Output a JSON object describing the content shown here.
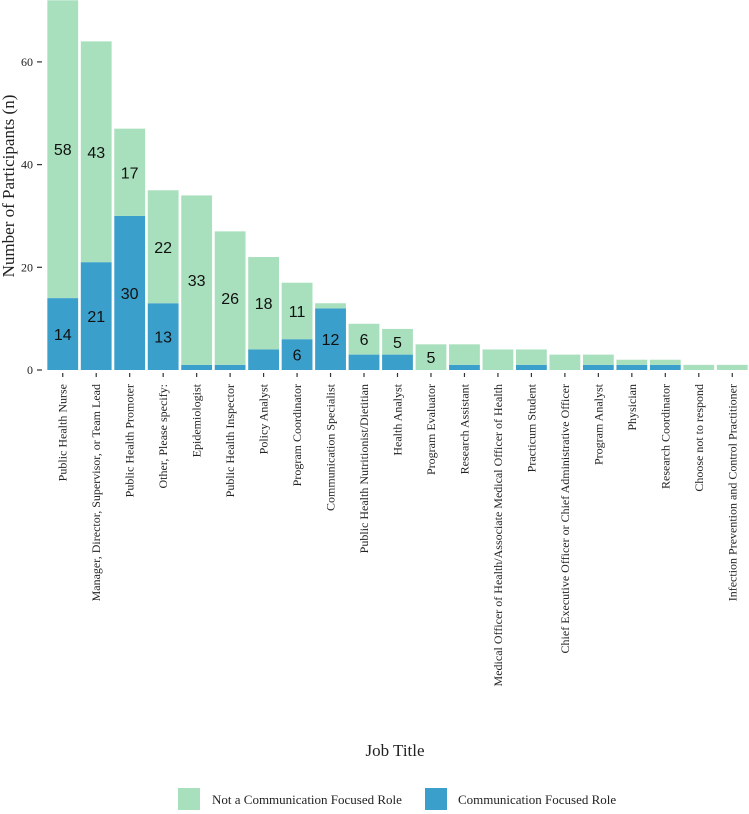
{
  "chart_data": {
    "type": "bar",
    "stacked": true,
    "title": "",
    "xlabel": "Job Title",
    "ylabel": "Number of Participants (n)",
    "ylim": [
      0,
      72
    ],
    "yticks": [
      0,
      20,
      40,
      60
    ],
    "grid": false,
    "legend_position": "bottom",
    "categories": [
      "Public Health Nurse",
      "Manager, Director, Supervisor, or Team Lead",
      "Public Health Promoter",
      "Other, Please specify:",
      "Epidemiologist",
      "Public Health Inspector",
      "Policy Analyst",
      "Program Coordinator",
      "Communication Specialist",
      "Public Health Nutritionist/Dietitian",
      "Health Analyst",
      "Program Evaluator",
      "Research Assistant",
      "Medical Officer of Health/Associate Medical Officer of Health",
      "Practicum Student",
      "Chief Executive Officer or Chief Administrative Officer",
      "Program Analyst",
      "Physician",
      "Research Coordinator",
      "Choose not to respond",
      "Infection Prevention and Control Practitioner"
    ],
    "series": [
      {
        "name": "Communication Focused Role",
        "color": "#3a9fcb",
        "values": [
          14,
          21,
          30,
          13,
          1,
          1,
          4,
          6,
          12,
          3,
          3,
          0,
          1,
          0,
          1,
          0,
          1,
          1,
          1,
          0,
          0
        ],
        "labels": [
          "14",
          "21",
          "30",
          "13",
          "",
          "",
          "",
          "6",
          "12",
          "",
          "",
          "",
          "",
          "",
          "",
          "",
          "",
          "",
          "",
          "",
          ""
        ]
      },
      {
        "name": "Not a Communication Focused Role",
        "color": "#a8e0bd",
        "values": [
          58,
          43,
          17,
          22,
          33,
          26,
          18,
          11,
          1,
          6,
          5,
          5,
          4,
          4,
          3,
          3,
          2,
          1,
          1,
          1,
          1
        ],
        "labels": [
          "58",
          "43",
          "17",
          "22",
          "33",
          "26",
          "18",
          "11",
          "",
          "6",
          "5",
          "5",
          "",
          "",
          "",
          "",
          "",
          "",
          "",
          "",
          ""
        ]
      }
    ],
    "legend": [
      {
        "label": "Not a Communication Focused Role",
        "color": "#a8e0bd"
      },
      {
        "label": "Communication Focused Role",
        "color": "#3a9fcb"
      }
    ]
  }
}
